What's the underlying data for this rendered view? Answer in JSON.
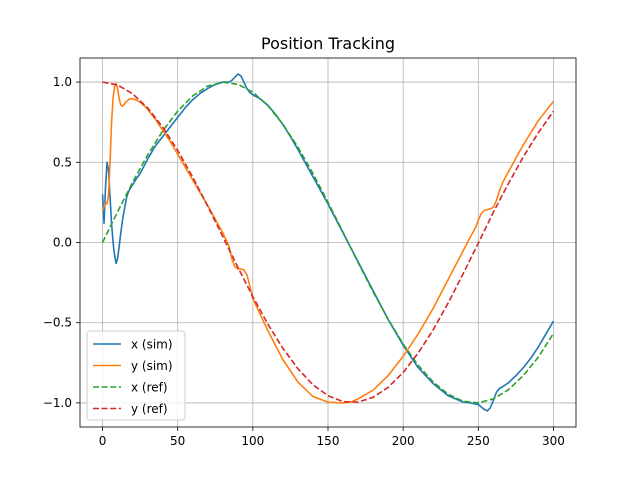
{
  "chart_data": {
    "type": "line",
    "title": "Position Tracking",
    "xlabel": "",
    "ylabel": "",
    "xlim": [
      -15,
      315
    ],
    "ylim": [
      -1.15,
      1.15
    ],
    "x_ticks": [
      0,
      50,
      100,
      150,
      200,
      250,
      300
    ],
    "y_ticks": [
      -1.0,
      -0.5,
      0.0,
      0.5,
      1.0
    ],
    "x_tick_labels": [
      "0",
      "50",
      "100",
      "150",
      "200",
      "250",
      "300"
    ],
    "y_tick_labels": [
      "−1.0",
      "−0.5",
      "0.0",
      "0.5",
      "1.0"
    ],
    "grid": true,
    "legend_position": "lower-left",
    "series": [
      {
        "name": "x (sim)",
        "color": "#1f77b4",
        "dash": "solid",
        "x": [
          0,
          1,
          2,
          3,
          4,
          5,
          6,
          7,
          8,
          9,
          10,
          11,
          12,
          13,
          14,
          15,
          16,
          17,
          18,
          20,
          22,
          25,
          30,
          35,
          40,
          45,
          50,
          55,
          60,
          65,
          70,
          75,
          80,
          84,
          86,
          88,
          90,
          92,
          94,
          96,
          98,
          100,
          105,
          110,
          115,
          120,
          125,
          130,
          140,
          150,
          160,
          170,
          180,
          190,
          200,
          210,
          220,
          230,
          240,
          245,
          250,
          252,
          254,
          256,
          258,
          260,
          262,
          264,
          266,
          270,
          275,
          280,
          285,
          290,
          295,
          300
        ],
        "values": [
          0.3,
          0.12,
          0.35,
          0.5,
          0.45,
          0.28,
          0.12,
          0.0,
          -0.08,
          -0.13,
          -0.1,
          -0.03,
          0.05,
          0.12,
          0.18,
          0.23,
          0.28,
          0.31,
          0.33,
          0.36,
          0.39,
          0.43,
          0.52,
          0.6,
          0.66,
          0.72,
          0.78,
          0.84,
          0.89,
          0.93,
          0.96,
          0.985,
          1.0,
          1.0,
          1.01,
          1.03,
          1.05,
          1.04,
          1.0,
          0.96,
          0.935,
          0.92,
          0.895,
          0.855,
          0.8,
          0.735,
          0.66,
          0.58,
          0.41,
          0.24,
          0.06,
          -0.12,
          -0.3,
          -0.48,
          -0.64,
          -0.78,
          -0.88,
          -0.955,
          -0.995,
          -1.0,
          -1.01,
          -1.025,
          -1.04,
          -1.05,
          -1.03,
          -0.985,
          -0.935,
          -0.91,
          -0.9,
          -0.875,
          -0.83,
          -0.78,
          -0.72,
          -0.65,
          -0.57,
          -0.49
        ]
      },
      {
        "name": "y (sim)",
        "color": "#ff7f0e",
        "dash": "solid",
        "x": [
          0,
          1,
          2,
          3,
          4,
          5,
          6,
          7,
          8,
          9,
          10,
          11,
          12,
          13,
          14,
          15,
          16,
          18,
          20,
          22,
          25,
          28,
          30,
          35,
          40,
          45,
          50,
          60,
          70,
          80,
          84,
          86,
          88,
          90,
          92,
          94,
          96,
          98,
          100,
          105,
          110,
          120,
          130,
          140,
          150,
          160,
          165,
          170,
          180,
          190,
          200,
          210,
          220,
          230,
          240,
          245,
          248,
          250,
          252,
          254,
          256,
          258,
          260,
          262,
          264,
          266,
          270,
          280,
          290,
          300
        ],
        "values": [
          0.2,
          0.22,
          0.25,
          0.24,
          0.3,
          0.5,
          0.75,
          0.9,
          0.97,
          0.99,
          0.96,
          0.9,
          0.86,
          0.85,
          0.855,
          0.87,
          0.88,
          0.895,
          0.895,
          0.89,
          0.875,
          0.85,
          0.83,
          0.77,
          0.7,
          0.63,
          0.55,
          0.39,
          0.23,
          0.06,
          -0.02,
          -0.1,
          -0.15,
          -0.165,
          -0.165,
          -0.17,
          -0.2,
          -0.27,
          -0.35,
          -0.45,
          -0.55,
          -0.73,
          -0.87,
          -0.96,
          -0.995,
          -1.0,
          -0.995,
          -0.975,
          -0.92,
          -0.83,
          -0.71,
          -0.57,
          -0.41,
          -0.23,
          -0.05,
          0.04,
          0.09,
          0.14,
          0.18,
          0.2,
          0.205,
          0.21,
          0.22,
          0.26,
          0.32,
          0.37,
          0.44,
          0.61,
          0.76,
          0.88
        ]
      },
      {
        "name": "x (ref)",
        "color": "#2ca02c",
        "dash": "dashed",
        "x": [
          0,
          10,
          20,
          30,
          40,
          50,
          60,
          70,
          80,
          90,
          100,
          110,
          120,
          130,
          140,
          150,
          160,
          170,
          180,
          190,
          200,
          210,
          220,
          230,
          240,
          250,
          260,
          270,
          280,
          290,
          300
        ],
        "values": [
          0.0,
          0.191,
          0.375,
          0.545,
          0.695,
          0.819,
          0.914,
          0.975,
          0.999,
          0.986,
          0.937,
          0.853,
          0.737,
          0.594,
          0.43,
          0.251,
          0.064,
          -0.125,
          -0.308,
          -0.478,
          -0.633,
          -0.765,
          -0.87,
          -0.946,
          -0.99,
          -0.999,
          -0.975,
          -0.918,
          -0.829,
          -0.714,
          -0.567
        ]
      },
      {
        "name": "y (ref)",
        "color": "#d62728",
        "dash": "dashed",
        "x": [
          0,
          10,
          20,
          30,
          40,
          50,
          60,
          70,
          80,
          90,
          100,
          110,
          120,
          130,
          140,
          150,
          160,
          170,
          180,
          190,
          200,
          210,
          220,
          230,
          240,
          250,
          260,
          270,
          280,
          290,
          300
        ],
        "values": [
          1.0,
          0.982,
          0.927,
          0.839,
          0.719,
          0.574,
          0.407,
          0.226,
          0.037,
          -0.154,
          -0.338,
          -0.509,
          -0.66,
          -0.787,
          -0.887,
          -0.955,
          -0.992,
          -0.995,
          -0.965,
          -0.903,
          -0.81,
          -0.689,
          -0.544,
          -0.376,
          -0.193,
          -0.004,
          0.188,
          0.367,
          0.535,
          0.685,
          0.818
        ]
      }
    ]
  }
}
